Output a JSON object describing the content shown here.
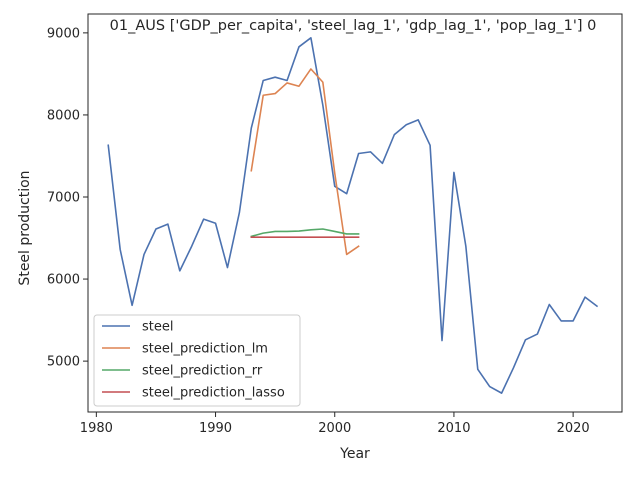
{
  "chart_data": {
    "type": "line",
    "title": "01_AUS ['GDP_per_capita', 'steel_lag_1', 'gdp_lag_1', 'pop_lag_1'] 0",
    "xlabel": "Year",
    "ylabel": "Steel production",
    "xlim": [
      1979.3,
      2024.1
    ],
    "ylim": [
      4380,
      9230
    ],
    "xticks": [
      1980,
      1990,
      2000,
      2010,
      2020
    ],
    "yticks": [
      5000,
      6000,
      7000,
      8000,
      9000
    ],
    "legend_position": "lower-left",
    "grid": false,
    "series": [
      {
        "name": "steel",
        "color": "#4c72b0",
        "x": [
          1981,
          1982,
          1983,
          1984,
          1985,
          1986,
          1987,
          1988,
          1989,
          1990,
          1991,
          1992,
          1993,
          1994,
          1995,
          1996,
          1997,
          1998,
          1999,
          2000,
          2001,
          2002,
          2003,
          2004,
          2005,
          2006,
          2007,
          2008,
          2009,
          2010,
          2011,
          2012,
          2013,
          2014,
          2015,
          2016,
          2017,
          2018,
          2019,
          2020,
          2021,
          2022
        ],
        "y": [
          7630,
          6360,
          5680,
          6300,
          6610,
          6670,
          6100,
          6400,
          6730,
          6680,
          6140,
          6810,
          7840,
          8420,
          8460,
          8420,
          8830,
          8940,
          8120,
          7130,
          7040,
          7530,
          7550,
          7410,
          7760,
          7880,
          7940,
          7630,
          5250,
          7300,
          6400,
          4900,
          4690,
          4610,
          4920,
          5260,
          5330,
          5690,
          5490,
          5490,
          5780,
          5670
        ]
      },
      {
        "name": "steel_prediction_lm",
        "color": "#dd8452",
        "x": [
          1993,
          1994,
          1995,
          1996,
          1997,
          1998,
          1999,
          2000,
          2001,
          2002
        ],
        "y": [
          7320,
          8240,
          8260,
          8390,
          8350,
          8560,
          8400,
          7290,
          6300,
          6400
        ]
      },
      {
        "name": "steel_prediction_rr",
        "color": "#55a868",
        "x": [
          1993,
          1994,
          1995,
          1996,
          1997,
          1998,
          1999,
          2000,
          2001,
          2002
        ],
        "y": [
          6520,
          6560,
          6580,
          6580,
          6585,
          6600,
          6610,
          6580,
          6550,
          6550
        ]
      },
      {
        "name": "steel_prediction_lasso",
        "color": "#c44e52",
        "x": [
          1993,
          1994,
          1995,
          1996,
          1997,
          1998,
          1999,
          2000,
          2001,
          2002
        ],
        "y": [
          6510,
          6510,
          6510,
          6510,
          6510,
          6510,
          6510,
          6510,
          6510,
          6510
        ]
      }
    ]
  }
}
